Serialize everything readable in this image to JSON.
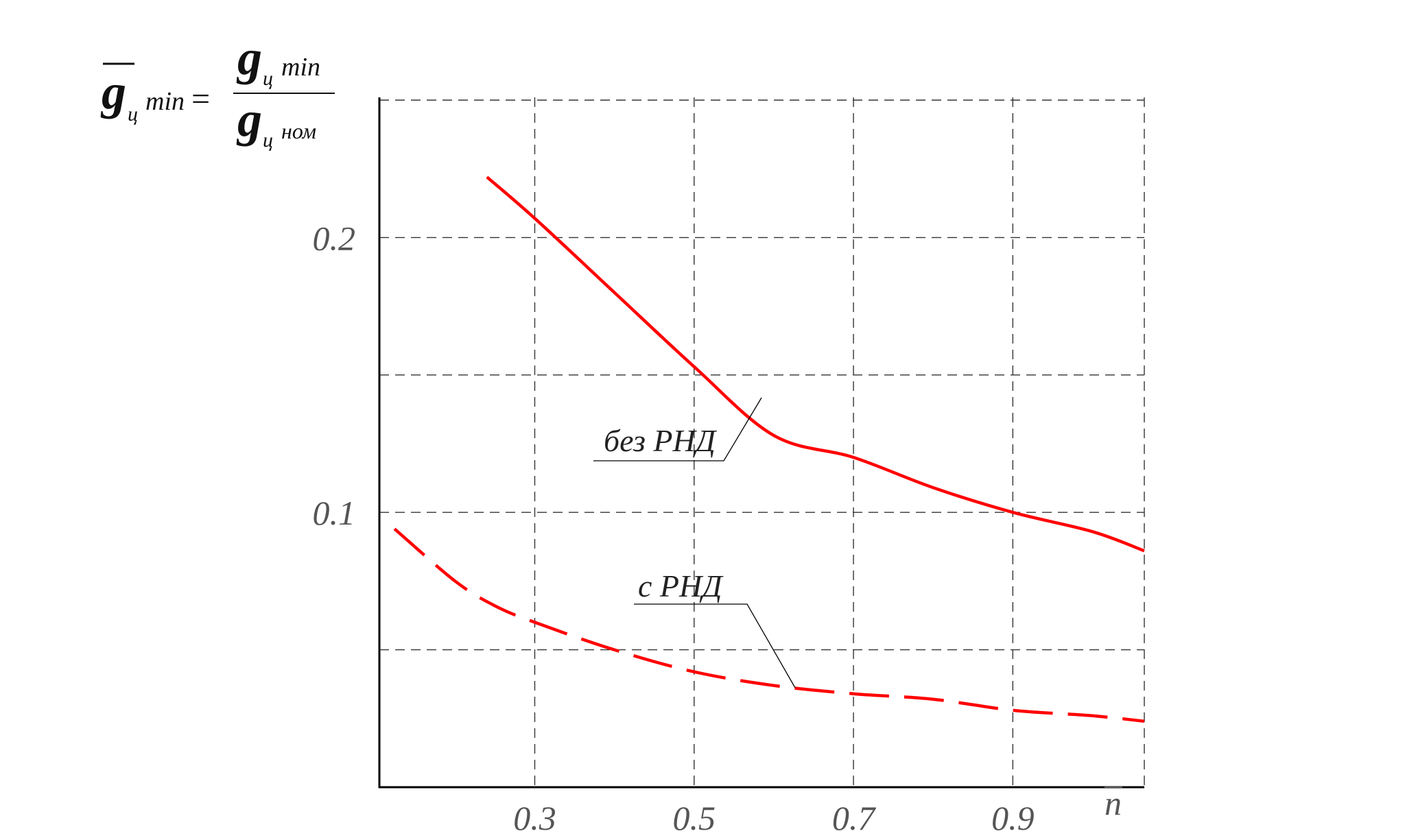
{
  "formula": {
    "lhs_symbol": "g",
    "lhs_sub": "ц",
    "lhs_min": "min",
    "eq": "=",
    "num_symbol": "g",
    "num_sub": "ц",
    "num_min": "min",
    "den_symbol": "g",
    "den_sub": "ц",
    "den_nom": "ном"
  },
  "chart_data": {
    "type": "line",
    "title": "",
    "xlabel": "n",
    "ylabel": "",
    "xlim": [
      0.105,
      1.065
    ],
    "ylim": [
      0.0,
      0.251
    ],
    "x_ticks": [
      0.3,
      0.5,
      0.7,
      0.9
    ],
    "x_tick_labels": [
      "0.3",
      "0.5",
      "0.7",
      "0.9"
    ],
    "y_ticks": [
      0.1,
      0.2
    ],
    "y_tick_labels": [
      "0.1",
      "0.2"
    ],
    "y_grid": [
      0.05,
      0.1,
      0.15,
      0.2,
      0.25
    ],
    "x_grid": [
      0.3,
      0.5,
      0.7,
      0.9,
      1.065
    ],
    "grid": true,
    "colors": {
      "series": "#ff0000",
      "grid": "#333333",
      "axis": "#000000",
      "leader": "#000000"
    },
    "series": [
      {
        "name": "без РНД",
        "style": "solid",
        "x": [
          0.24,
          0.3,
          0.4,
          0.5,
          0.6,
          0.7,
          0.8,
          0.9,
          1.0,
          1.065
        ],
        "y": [
          0.222,
          0.207,
          0.18,
          0.153,
          0.128,
          0.12,
          0.109,
          0.1,
          0.093,
          0.086
        ]
      },
      {
        "name": "с РНД",
        "style": "dashed",
        "x": [
          0.124,
          0.2,
          0.25,
          0.3,
          0.4,
          0.5,
          0.6,
          0.7,
          0.8,
          0.9,
          1.0,
          1.065
        ],
        "y": [
          0.094,
          0.075,
          0.066,
          0.06,
          0.05,
          0.042,
          0.037,
          0.034,
          0.032,
          0.028,
          0.026,
          0.024
        ]
      }
    ],
    "annotations": [
      {
        "text": "без РНД",
        "series": 0
      },
      {
        "text": "с РНД",
        "series": 1
      }
    ]
  }
}
